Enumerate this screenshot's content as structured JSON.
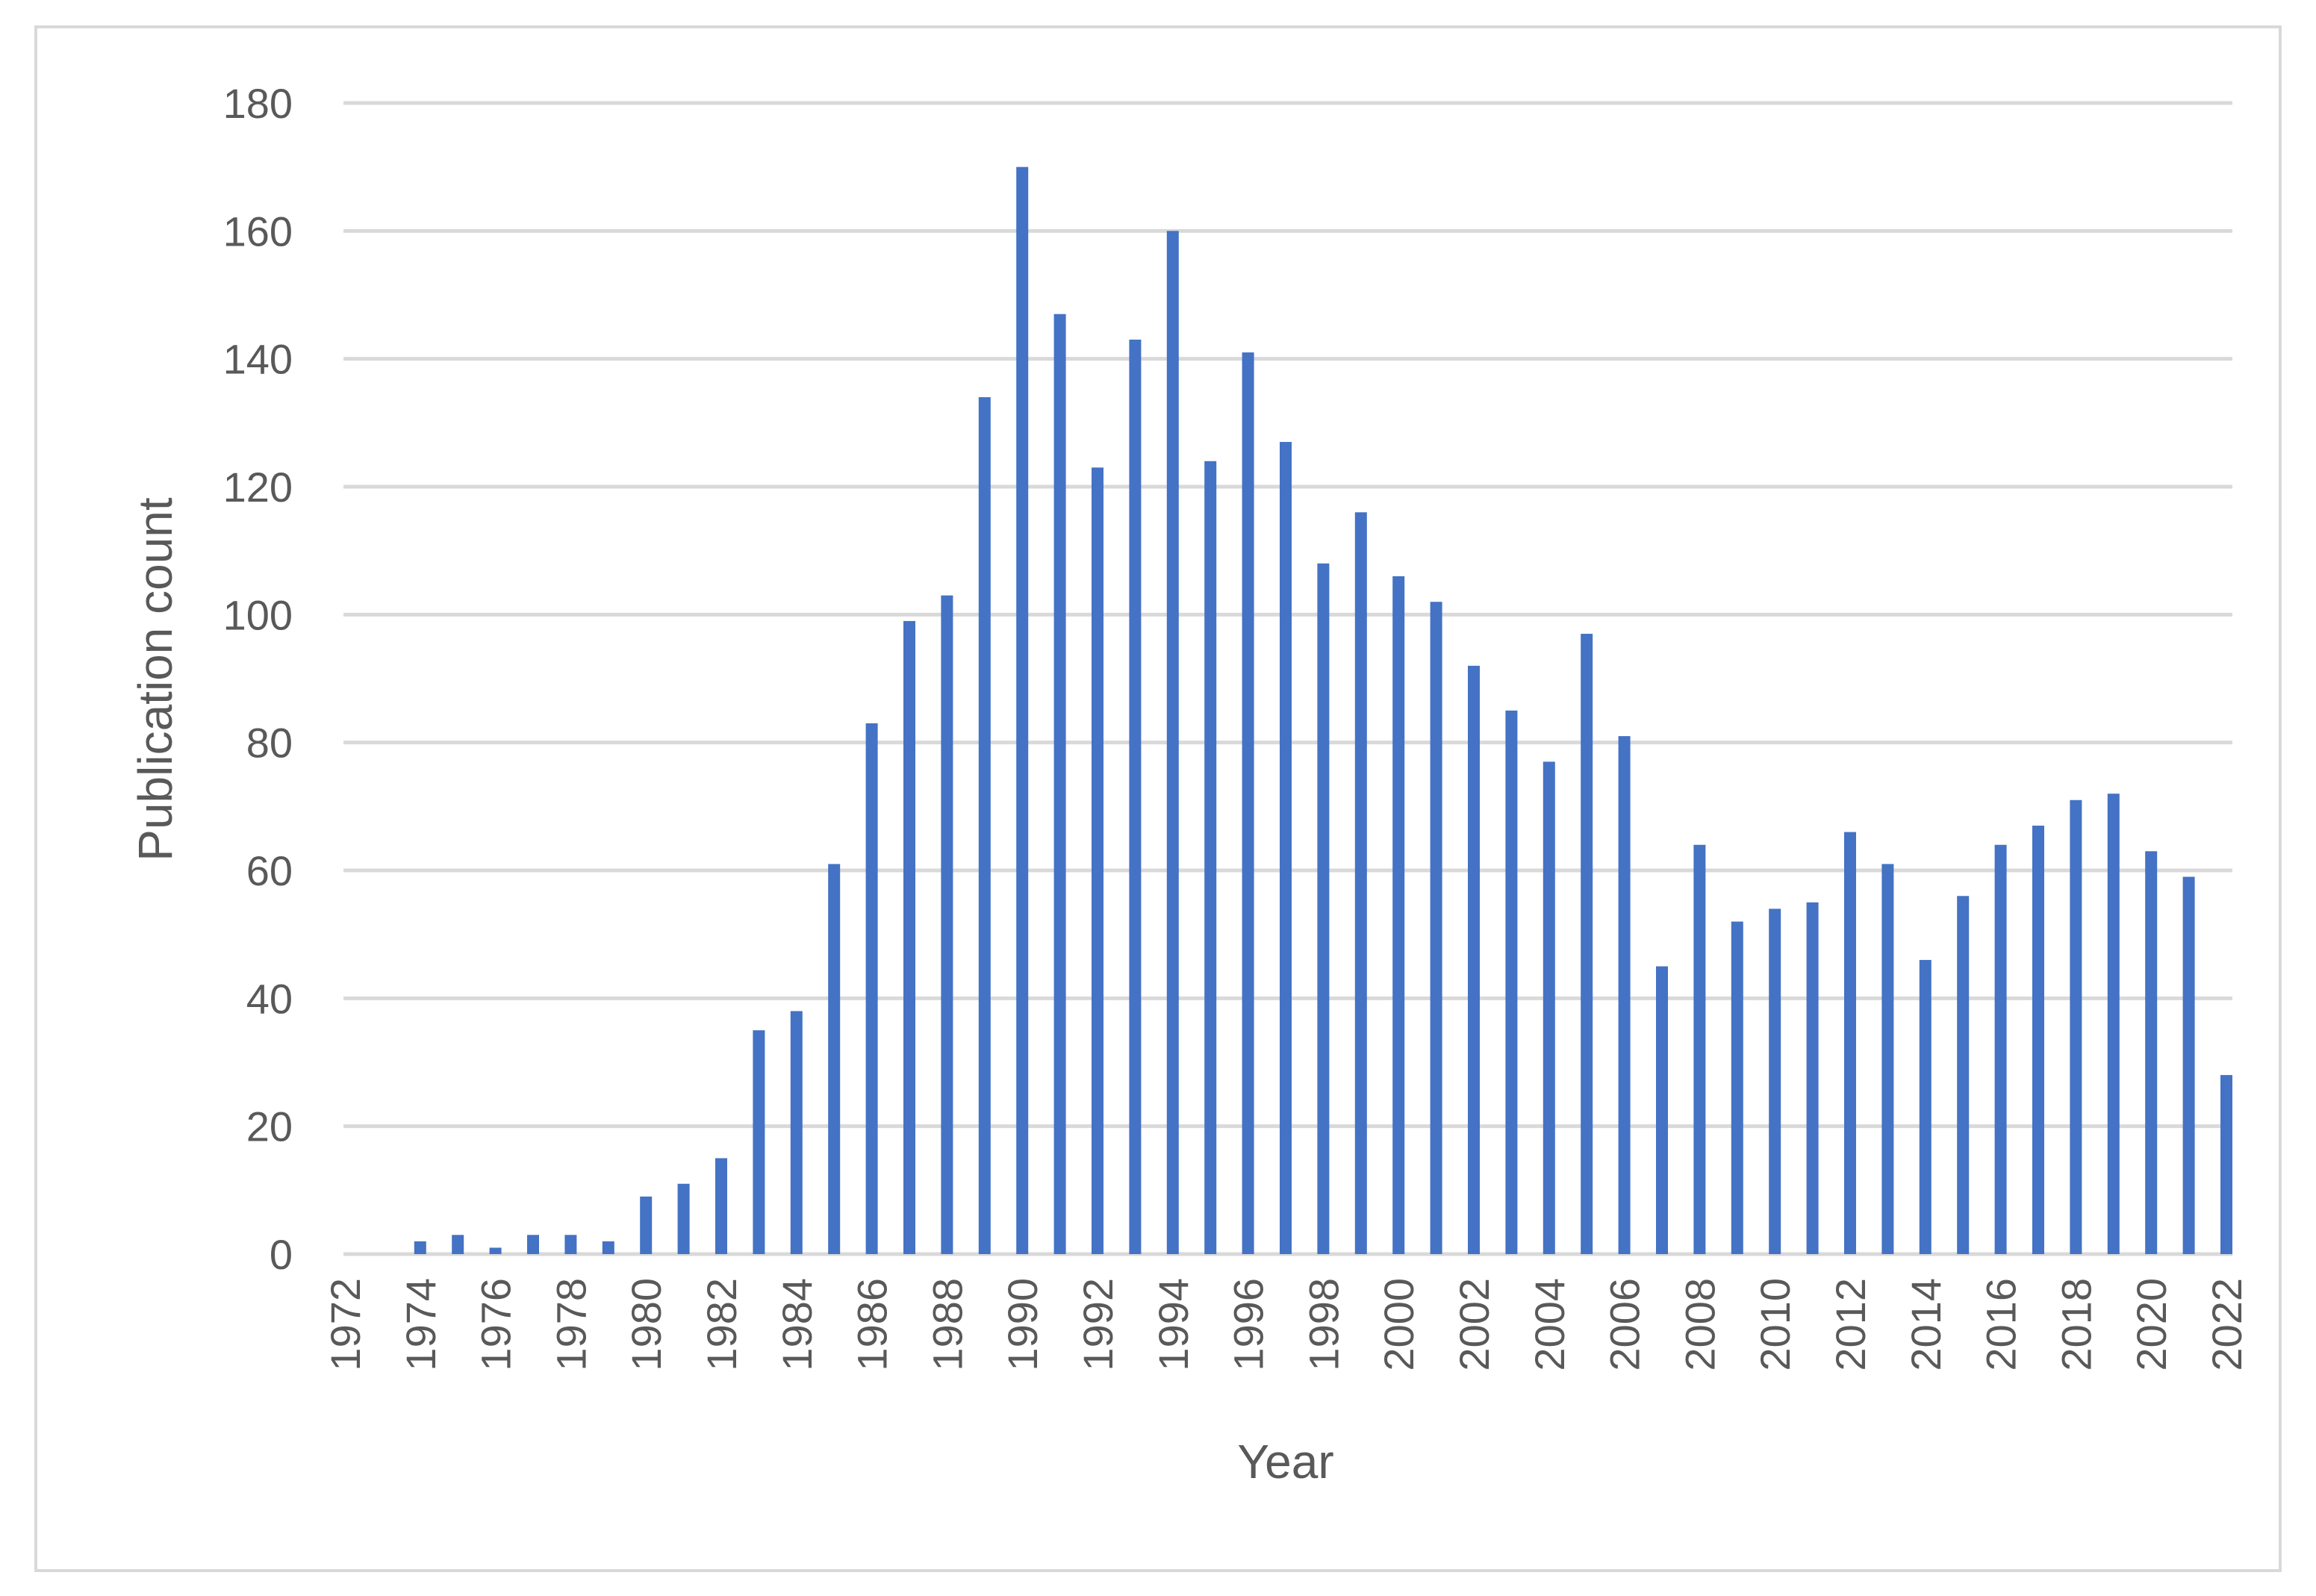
{
  "chart_data": {
    "type": "bar",
    "title": "",
    "xlabel": "Year",
    "ylabel": "Publication count",
    "ylim": [
      0,
      180
    ],
    "yticks": [
      0,
      20,
      40,
      60,
      80,
      100,
      120,
      140,
      160,
      180
    ],
    "grid": true,
    "legend": "none",
    "bar_color": "#4472c4",
    "grid_color": "#d9d9d9",
    "text_color": "#595959",
    "categories": [
      "1972",
      "1973",
      "1974",
      "1975",
      "1976",
      "1977",
      "1978",
      "1979",
      "1980",
      "1981",
      "1982",
      "1983",
      "1984",
      "1985",
      "1986",
      "1987",
      "1988",
      "1989",
      "1990",
      "1991",
      "1992",
      "1993",
      "1994",
      "1995",
      "1996",
      "1997",
      "1998",
      "1999",
      "2000",
      "2001",
      "2002",
      "2003",
      "2004",
      "2005",
      "2006",
      "2007",
      "2008",
      "2009",
      "2010",
      "2011",
      "2012",
      "2013",
      "2014",
      "2015",
      "2016",
      "2017",
      "2018",
      "2019",
      "2020",
      "2021",
      "2022"
    ],
    "x_tick_labels": [
      "1972",
      "",
      "1974",
      "",
      "1976",
      "",
      "1978",
      "",
      "1980",
      "",
      "1982",
      "",
      "1984",
      "",
      "1986",
      "",
      "1988",
      "",
      "1990",
      "",
      "1992",
      "",
      "1994",
      "",
      "1996",
      "",
      "1998",
      "",
      "2000",
      "",
      "2002",
      "",
      "2004",
      "",
      "2006",
      "",
      "2008",
      "",
      "2010",
      "",
      "2012",
      "",
      "2014",
      "",
      "2016",
      "",
      "2018",
      "",
      "2020",
      "",
      "2022"
    ],
    "values": [
      0,
      0,
      2,
      3,
      1,
      3,
      3,
      2,
      9,
      11,
      15,
      35,
      38,
      61,
      83,
      99,
      103,
      134,
      170,
      147,
      123,
      143,
      160,
      124,
      141,
      127,
      108,
      116,
      106,
      102,
      92,
      85,
      77,
      97,
      81,
      45,
      64,
      52,
      54,
      55,
      66,
      61,
      46,
      56,
      64,
      67,
      71,
      72,
      63,
      59,
      28
    ]
  }
}
